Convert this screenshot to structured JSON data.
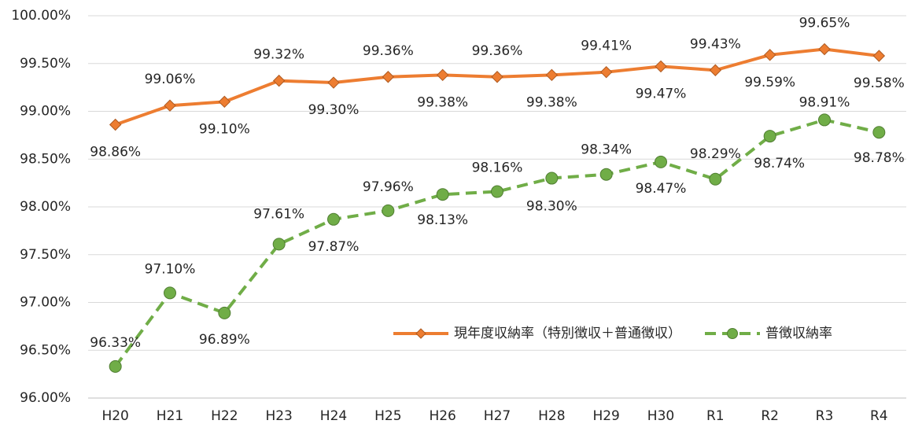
{
  "chart_data": {
    "type": "line",
    "categories": [
      "H20",
      "H21",
      "H22",
      "H23",
      "H24",
      "H25",
      "H26",
      "H27",
      "H28",
      "H29",
      "H30",
      "R1",
      "R2",
      "R3",
      "R4"
    ],
    "series": [
      {
        "name": "現年度収納率（特別徴収＋普通徴収）",
        "color": "#ed7d31",
        "line_style": "solid",
        "marker": "diamond",
        "values": [
          98.86,
          99.06,
          99.1,
          99.32,
          99.3,
          99.36,
          99.38,
          99.36,
          99.38,
          99.41,
          99.47,
          99.43,
          99.59,
          99.65,
          99.58
        ],
        "value_labels": [
          "98.86%",
          "99.06%",
          "99.10%",
          "99.32%",
          "99.30%",
          "99.36%",
          "99.38%",
          "99.36%",
          "99.38%",
          "99.41%",
          "99.47%",
          "99.43%",
          "99.59%",
          "99.65%",
          "99.58%"
        ]
      },
      {
        "name": "普徴収納率",
        "color": "#70ad47",
        "line_style": "dashed",
        "marker": "circle",
        "values": [
          96.33,
          97.1,
          96.89,
          97.61,
          97.87,
          97.96,
          98.13,
          98.16,
          98.3,
          98.34,
          98.47,
          98.29,
          98.74,
          98.91,
          98.78
        ],
        "value_labels": [
          "96.33%",
          "97.10%",
          "96.89%",
          "97.61%",
          "97.87%",
          "97.96%",
          "98.13%",
          "98.16%",
          "98.30%",
          "98.34%",
          "98.47%",
          "98.29%",
          "98.74%",
          "98.91%",
          "98.78%"
        ]
      }
    ],
    "ylim": [
      96,
      100
    ],
    "yticks": [
      {
        "value": 96,
        "label": "96.00%"
      },
      {
        "value": 96.5,
        "label": "96.50%"
      },
      {
        "value": 97,
        "label": "97.00%"
      },
      {
        "value": 97.5,
        "label": "97.50%"
      },
      {
        "value": 98,
        "label": "98.00%"
      },
      {
        "value": 98.5,
        "label": "98.50%"
      },
      {
        "value": 99,
        "label": "99.00%"
      },
      {
        "value": 99.5,
        "label": "99.50%"
      },
      {
        "value": 100,
        "label": "100.00%"
      }
    ],
    "grid": true,
    "legend_position": "lower right"
  }
}
